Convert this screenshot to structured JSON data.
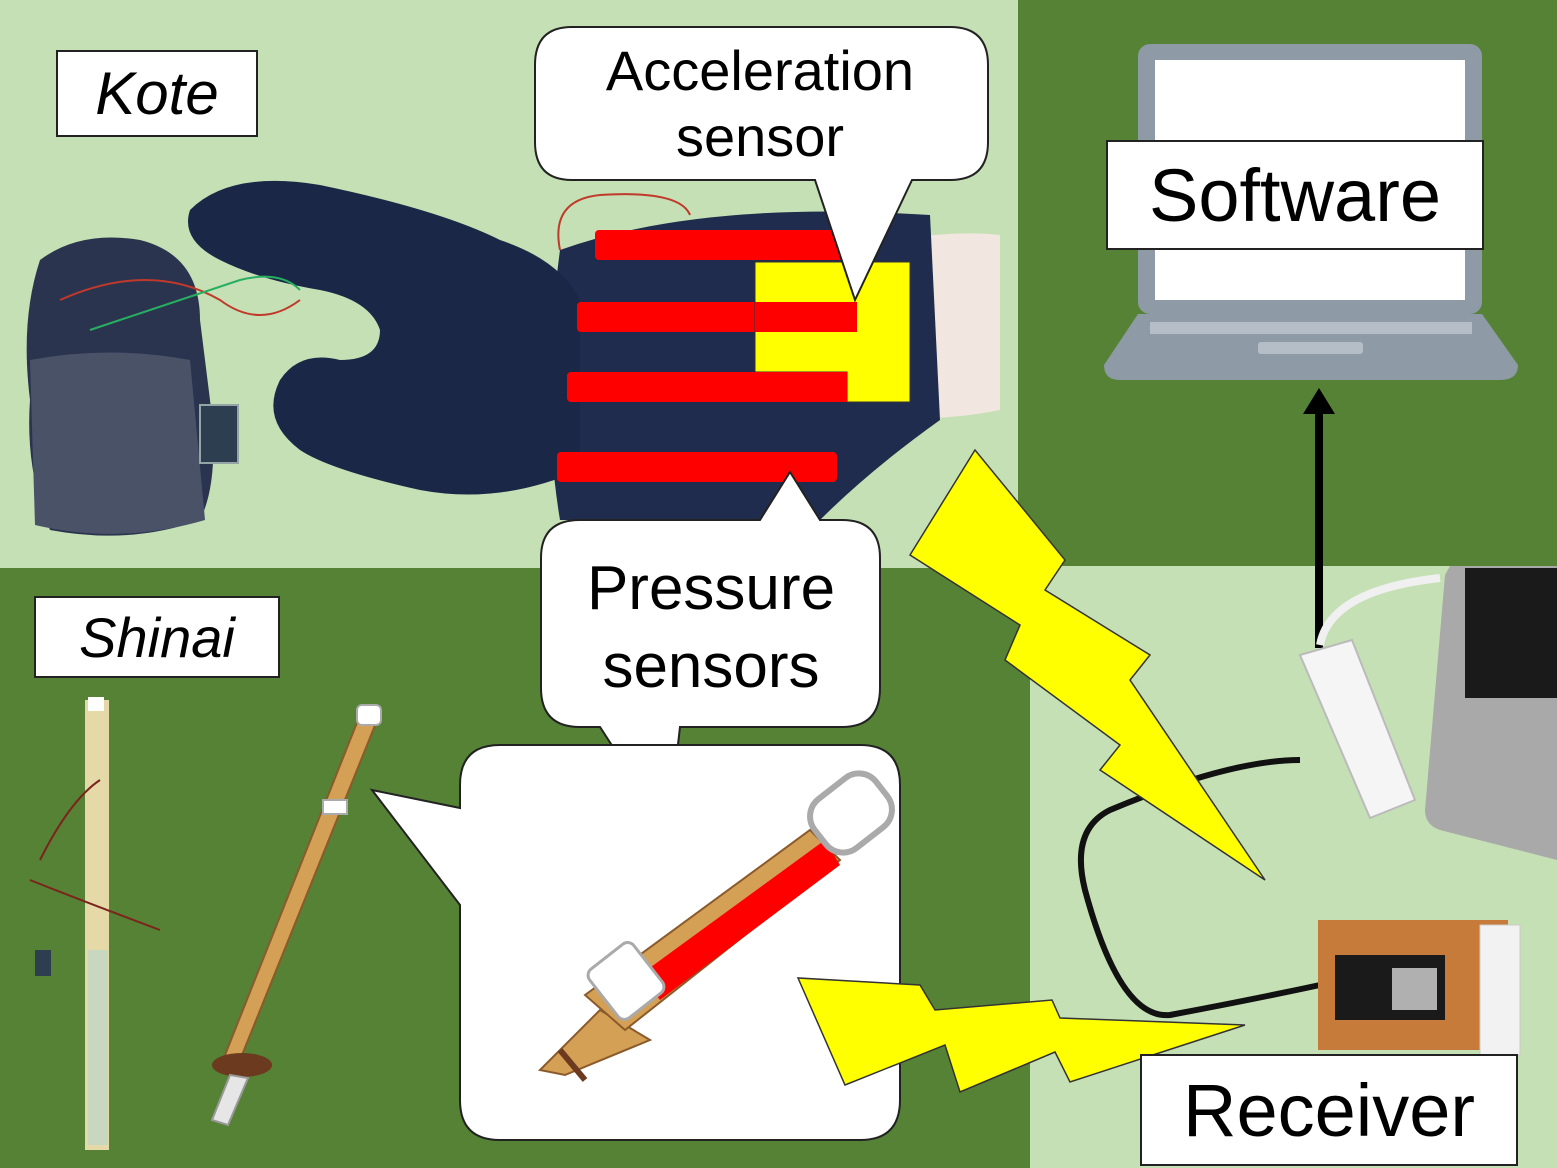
{
  "labels": {
    "kote": "Kote",
    "shinai": "Shinai",
    "software": "Software",
    "receiver": "Receiver"
  },
  "callouts": {
    "acceleration_line1": "Acceleration",
    "acceleration_line2": "sensor",
    "pressure_line1": "Pressure",
    "pressure_line2": "sensors"
  },
  "colors": {
    "light_green": "#c5e0b4",
    "dark_green": "#558235",
    "pressure_sensor": "#ff0000",
    "acceleration_sensor": "#ffff00",
    "signal_bolt": "#ffff00",
    "glove": "#1e2a4a",
    "laptop": "#8e9aa6"
  },
  "icons": {
    "wireless_signal": "lightning-bolt-icon",
    "data_flow": "arrow-up-icon"
  }
}
